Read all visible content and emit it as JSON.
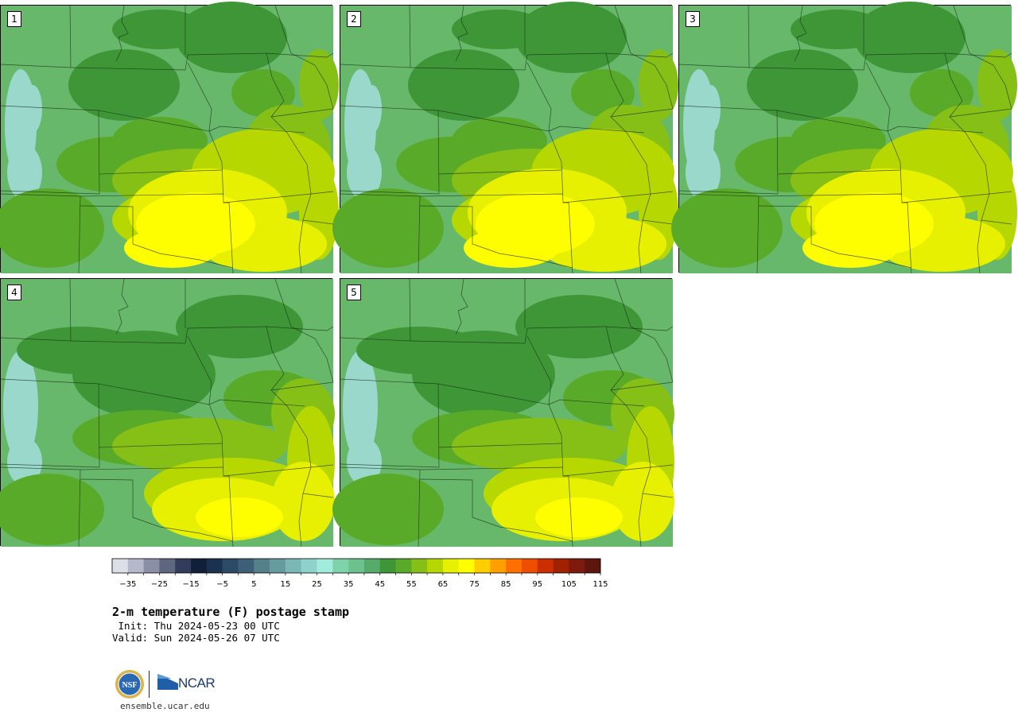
{
  "panels": [
    {
      "label": "1",
      "palette": "warm"
    },
    {
      "label": "2",
      "palette": "warm"
    },
    {
      "label": "3",
      "palette": "warm"
    },
    {
      "label": "4",
      "palette": "mild"
    },
    {
      "label": "5",
      "palette": "mild"
    }
  ],
  "colorbar": {
    "colors": [
      "#dcdfe8",
      "#b4b8c9",
      "#8a8fa6",
      "#5f6680",
      "#303c5a",
      "#102038",
      "#1a3250",
      "#2b4a66",
      "#3d6078",
      "#538089",
      "#679c9f",
      "#7ab8b6",
      "#8fd2cb",
      "#a2ecde",
      "#7fd3a9",
      "#6cc18e",
      "#56aa6a",
      "#3e9637",
      "#5aaa2a",
      "#86c017",
      "#b6d800",
      "#e6f000",
      "#fffe00",
      "#ffcc00",
      "#ff9f00",
      "#ff7000",
      "#ef4d00",
      "#cc2e00",
      "#a12000",
      "#7e1a0c",
      "#5d160e"
    ],
    "min": -35,
    "step": 5,
    "tick_labels": [
      "−35",
      "−25",
      "−15",
      "−5",
      "5",
      "15",
      "25",
      "35",
      "45",
      "55",
      "65",
      "75",
      "85",
      "95",
      "105",
      "115"
    ]
  },
  "title": "2-m temperature (F) postage stamp",
  "init": " Init: Thu 2024-05-23 00 UTC",
  "valid": "Valid: Sun 2024-05-26 07 UTC",
  "logos": {
    "nsf_text": "NSF",
    "ncar_text": "NCAR"
  },
  "website": "ensemble.ucar.edu"
}
